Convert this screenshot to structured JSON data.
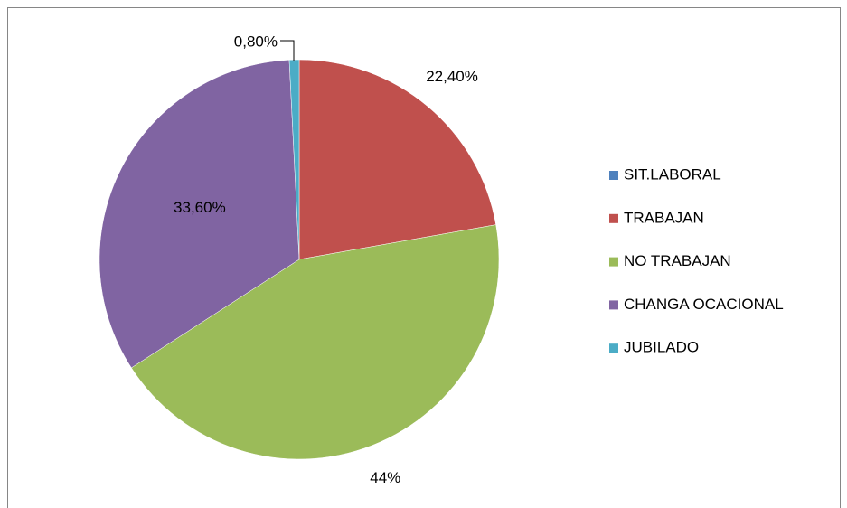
{
  "chart_data": {
    "type": "pie",
    "categories": [
      "SIT.LABORAL",
      "TRABAJAN",
      "NO TRABAJAN",
      "CHANGA OCACIONAL",
      "JUBILADO"
    ],
    "values": [
      0,
      22.4,
      44,
      33.6,
      0.8
    ],
    "value_labels": [
      null,
      "22,40%",
      "44%",
      "33,60%",
      "0,80%"
    ],
    "colors": [
      "#4f81bd",
      "#c0504d",
      "#9bbb59",
      "#8064a2",
      "#4bacc6"
    ],
    "legend": "right"
  }
}
